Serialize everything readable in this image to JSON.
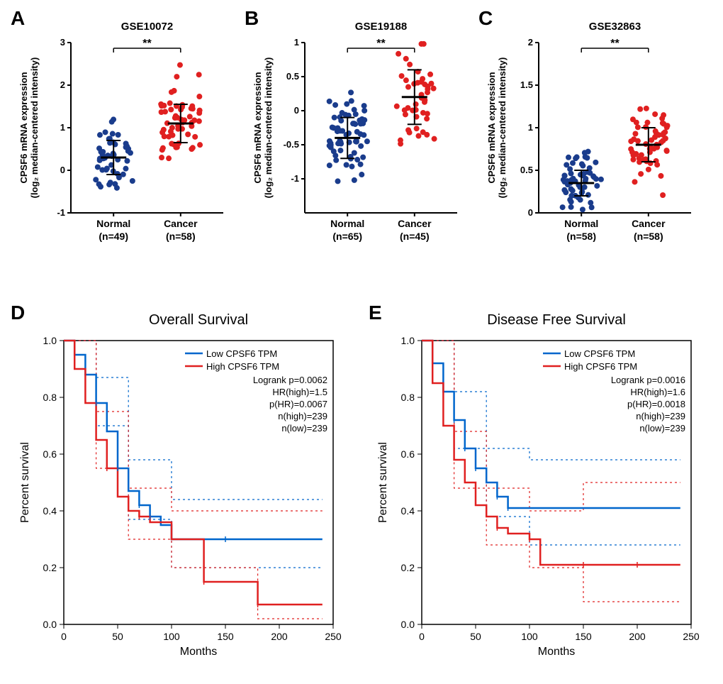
{
  "scatter_panels": [
    {
      "label": "A",
      "title": "GSE10072",
      "y_axis_label": "CPSF6 mRNA expression\n(log₂ median-centered intensity)",
      "groups": [
        {
          "name": "Normal",
          "n": "(n=49)",
          "color": "#1a3c8c",
          "mean": 0.3,
          "sd": 0.4
        },
        {
          "name": "Cancer",
          "n": "(n=58)",
          "color": "#e02020",
          "mean": 1.1,
          "sd": 0.45
        }
      ],
      "ylim": [
        -1,
        3
      ],
      "yticks": [
        -1,
        0,
        1,
        2,
        3
      ],
      "sig": "**"
    },
    {
      "label": "B",
      "title": "GSE19188",
      "y_axis_label": "CPSF6 mRNA expression\n(log₂ median-centered intensity)",
      "groups": [
        {
          "name": "Normal",
          "n": "(n=65)",
          "color": "#1a3c8c",
          "mean": -0.4,
          "sd": 0.3
        },
        {
          "name": "Cancer",
          "n": "(n=45)",
          "color": "#e02020",
          "mean": 0.2,
          "sd": 0.4
        }
      ],
      "ylim": [
        -1.5,
        1.0
      ],
      "yticks": [
        -1.0,
        -0.5,
        0.0,
        0.5,
        1.0
      ],
      "sig": "**"
    },
    {
      "label": "C",
      "title": "GSE32863",
      "y_axis_label": "CPSF6 mRNA expression\n(log₂ median-centered intensity)",
      "groups": [
        {
          "name": "Normal",
          "n": "(n=58)",
          "color": "#1a3c8c",
          "mean": 0.35,
          "sd": 0.15
        },
        {
          "name": "Cancer",
          "n": "(n=58)",
          "color": "#e02020",
          "mean": 0.8,
          "sd": 0.2
        }
      ],
      "ylim": [
        0.0,
        2.0
      ],
      "yticks": [
        0.0,
        0.5,
        1.0,
        1.5,
        2.0
      ],
      "sig": "**"
    }
  ],
  "survival_panels": [
    {
      "label": "D",
      "title": "Overall Survival",
      "x_label": "Months",
      "y_label": "Percent survival",
      "legend": [
        "Low CPSF6 TPM",
        "High CPSF6 TPM"
      ],
      "stats": [
        "Logrank p=0.0062",
        "HR(high)=1.5",
        "p(HR)=0.0067",
        "n(high)=239",
        "n(low)=239"
      ],
      "colors": {
        "low": "#0066cc",
        "high": "#e02020"
      },
      "xlim": [
        0,
        250
      ],
      "xticks": [
        0,
        50,
        100,
        150,
        200,
        250
      ],
      "ylim": [
        0.0,
        1.0
      ],
      "yticks": [
        0.0,
        0.2,
        0.4,
        0.6,
        0.8,
        1.0
      ],
      "low_curve": [
        [
          0,
          1.0
        ],
        [
          10,
          0.95
        ],
        [
          20,
          0.88
        ],
        [
          30,
          0.78
        ],
        [
          40,
          0.68
        ],
        [
          50,
          0.55
        ],
        [
          60,
          0.47
        ],
        [
          70,
          0.42
        ],
        [
          80,
          0.38
        ],
        [
          90,
          0.35
        ],
        [
          100,
          0.3
        ],
        [
          150,
          0.3
        ],
        [
          200,
          0.3
        ],
        [
          240,
          0.3
        ]
      ],
      "high_curve": [
        [
          0,
          1.0
        ],
        [
          10,
          0.9
        ],
        [
          20,
          0.78
        ],
        [
          30,
          0.65
        ],
        [
          40,
          0.55
        ],
        [
          50,
          0.45
        ],
        [
          60,
          0.4
        ],
        [
          70,
          0.38
        ],
        [
          80,
          0.36
        ],
        [
          100,
          0.3
        ],
        [
          130,
          0.15
        ],
        [
          150,
          0.15
        ],
        [
          180,
          0.07
        ],
        [
          240,
          0.07
        ]
      ],
      "low_ci_upper": [
        [
          0,
          1.0
        ],
        [
          30,
          0.87
        ],
        [
          60,
          0.58
        ],
        [
          100,
          0.44
        ],
        [
          240,
          0.44
        ]
      ],
      "low_ci_lower": [
        [
          0,
          1.0
        ],
        [
          30,
          0.7
        ],
        [
          60,
          0.37
        ],
        [
          100,
          0.2
        ],
        [
          240,
          0.2
        ]
      ],
      "high_ci_upper": [
        [
          0,
          1.0
        ],
        [
          30,
          0.75
        ],
        [
          60,
          0.48
        ],
        [
          100,
          0.4
        ],
        [
          240,
          0.4
        ]
      ],
      "high_ci_lower": [
        [
          0,
          1.0
        ],
        [
          30,
          0.55
        ],
        [
          60,
          0.3
        ],
        [
          100,
          0.2
        ],
        [
          180,
          0.02
        ],
        [
          240,
          0.02
        ]
      ]
    },
    {
      "label": "E",
      "title": "Disease Free Survival",
      "x_label": "Months",
      "y_label": "Percent survival",
      "legend": [
        "Low CPSF6 TPM",
        "High CPSF6 TPM"
      ],
      "stats": [
        "Logrank p=0.0016",
        "HR(high)=1.6",
        "p(HR)=0.0018",
        "n(high)=239",
        "n(low)=239"
      ],
      "colors": {
        "low": "#0066cc",
        "high": "#e02020"
      },
      "xlim": [
        0,
        250
      ],
      "xticks": [
        0,
        50,
        100,
        150,
        200,
        250
      ],
      "ylim": [
        0.0,
        1.0
      ],
      "yticks": [
        0.0,
        0.2,
        0.4,
        0.6,
        0.8,
        1.0
      ],
      "low_curve": [
        [
          0,
          1.0
        ],
        [
          10,
          0.92
        ],
        [
          20,
          0.82
        ],
        [
          30,
          0.72
        ],
        [
          40,
          0.62
        ],
        [
          50,
          0.55
        ],
        [
          60,
          0.5
        ],
        [
          70,
          0.45
        ],
        [
          80,
          0.41
        ],
        [
          100,
          0.41
        ],
        [
          150,
          0.41
        ],
        [
          200,
          0.41
        ],
        [
          240,
          0.41
        ]
      ],
      "high_curve": [
        [
          0,
          1.0
        ],
        [
          10,
          0.85
        ],
        [
          20,
          0.7
        ],
        [
          30,
          0.58
        ],
        [
          40,
          0.5
        ],
        [
          50,
          0.42
        ],
        [
          60,
          0.38
        ],
        [
          70,
          0.34
        ],
        [
          80,
          0.32
        ],
        [
          100,
          0.3
        ],
        [
          110,
          0.21
        ],
        [
          150,
          0.21
        ],
        [
          200,
          0.21
        ],
        [
          240,
          0.21
        ]
      ],
      "low_ci_upper": [
        [
          0,
          1.0
        ],
        [
          30,
          0.82
        ],
        [
          60,
          0.62
        ],
        [
          100,
          0.58
        ],
        [
          240,
          0.58
        ]
      ],
      "low_ci_lower": [
        [
          0,
          1.0
        ],
        [
          30,
          0.62
        ],
        [
          60,
          0.38
        ],
        [
          100,
          0.28
        ],
        [
          240,
          0.28
        ]
      ],
      "high_ci_upper": [
        [
          0,
          1.0
        ],
        [
          30,
          0.68
        ],
        [
          60,
          0.48
        ],
        [
          100,
          0.4
        ],
        [
          150,
          0.5
        ],
        [
          240,
          0.5
        ]
      ],
      "high_ci_lower": [
        [
          0,
          1.0
        ],
        [
          30,
          0.48
        ],
        [
          60,
          0.28
        ],
        [
          100,
          0.2
        ],
        [
          150,
          0.08
        ],
        [
          240,
          0.08
        ]
      ]
    }
  ]
}
